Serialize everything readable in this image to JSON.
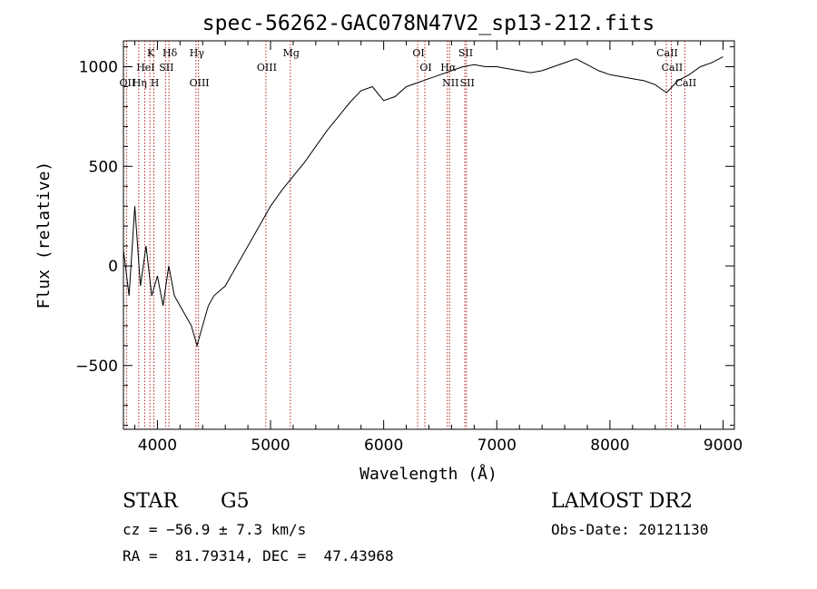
{
  "chart_data": {
    "type": "line",
    "title": "spec-56262-GAC078N47V2_sp13-212.fits",
    "xlabel": "Wavelength (Å)",
    "ylabel": "Flux (relative)",
    "xlim": [
      3700,
      9100
    ],
    "ylim": [
      -820,
      1130
    ],
    "x_ticks": [
      4000,
      5000,
      6000,
      7000,
      8000,
      9000
    ],
    "x_tick_labels": [
      "4000",
      "5000",
      "6000",
      "7000",
      "8000",
      "9000"
    ],
    "y_ticks": [
      -500,
      0,
      500,
      1000
    ],
    "y_tick_labels": [
      "−500",
      "0",
      "500",
      "1000"
    ],
    "grid": false,
    "series": [
      {
        "color": "#000000",
        "x": [
          3700,
          3750,
          3800,
          3850,
          3900,
          3950,
          4000,
          4050,
          4100,
          4150,
          4200,
          4250,
          4300,
          4350,
          4400,
          4450,
          4500,
          4600,
          4700,
          4800,
          4900,
          5000,
          5100,
          5200,
          5300,
          5400,
          5500,
          5600,
          5700,
          5800,
          5900,
          6000,
          6100,
          6200,
          6300,
          6400,
          6500,
          6600,
          6700,
          6800,
          6900,
          7000,
          7100,
          7200,
          7300,
          7400,
          7500,
          7600,
          7700,
          7800,
          7900,
          8000,
          8100,
          8200,
          8300,
          8400,
          8500,
          8550,
          8600,
          8700,
          8800,
          8900,
          9000
        ],
        "y": [
          80,
          -150,
          300,
          -100,
          100,
          -150,
          -50,
          -200,
          0,
          -150,
          -200,
          -250,
          -300,
          -400,
          -300,
          -200,
          -150,
          -100,
          0,
          100,
          200,
          300,
          380,
          450,
          520,
          600,
          680,
          750,
          820,
          880,
          900,
          830,
          850,
          900,
          920,
          940,
          960,
          980,
          1000,
          1010,
          1000,
          1000,
          990,
          980,
          970,
          980,
          1000,
          1020,
          1040,
          1010,
          980,
          960,
          950,
          940,
          930,
          910,
          870,
          900,
          930,
          960,
          1000,
          1020,
          1050
        ]
      }
    ],
    "line_markers": [
      {
        "label": "Hδ",
        "wavelength": 4102,
        "row": 1
      },
      {
        "label": "K",
        "wavelength": 3934,
        "row": 1
      },
      {
        "label": "Hγ",
        "wavelength": 4341,
        "row": 1
      },
      {
        "label": "Mg",
        "wavelength": 5175,
        "row": 1
      },
      {
        "label": "OI",
        "wavelength": 6300,
        "row": 1
      },
      {
        "label": "SII",
        "wavelength": 6717,
        "row": 1
      },
      {
        "label": "CaII",
        "wavelength": 8498,
        "row": 1
      },
      {
        "label": "HeI",
        "wavelength": 3888,
        "row": 2
      },
      {
        "label": "SII",
        "wavelength": 4072,
        "row": 2
      },
      {
        "label": "OIII",
        "wavelength": 4959,
        "row": 2
      },
      {
        "label": "OI",
        "wavelength": 6364,
        "row": 2
      },
      {
        "label": "Hα",
        "wavelength": 6563,
        "row": 2
      },
      {
        "label": "CaII",
        "wavelength": 8542,
        "row": 2
      },
      {
        "label": "OII",
        "wavelength": 3727,
        "row": 3
      },
      {
        "label": "Hη",
        "wavelength": 3835,
        "row": 3
      },
      {
        "label": "H",
        "wavelength": 3969,
        "row": 3
      },
      {
        "label": "OIII",
        "wavelength": 4363,
        "row": 3
      },
      {
        "label": "NII",
        "wavelength": 6583,
        "row": 3
      },
      {
        "label": "SII",
        "wavelength": 6731,
        "row": 3
      },
      {
        "label": "CaII",
        "wavelength": 8662,
        "row": 3
      }
    ]
  },
  "info": {
    "object_class": "STAR",
    "subclass": "G5",
    "survey": "LAMOST DR2",
    "redshift": "cz = −56.9 ± 7.3 km/s",
    "obs_date": "Obs-Date: 20121130",
    "coords": "RA =  81.79314, DEC =  47.43968"
  }
}
